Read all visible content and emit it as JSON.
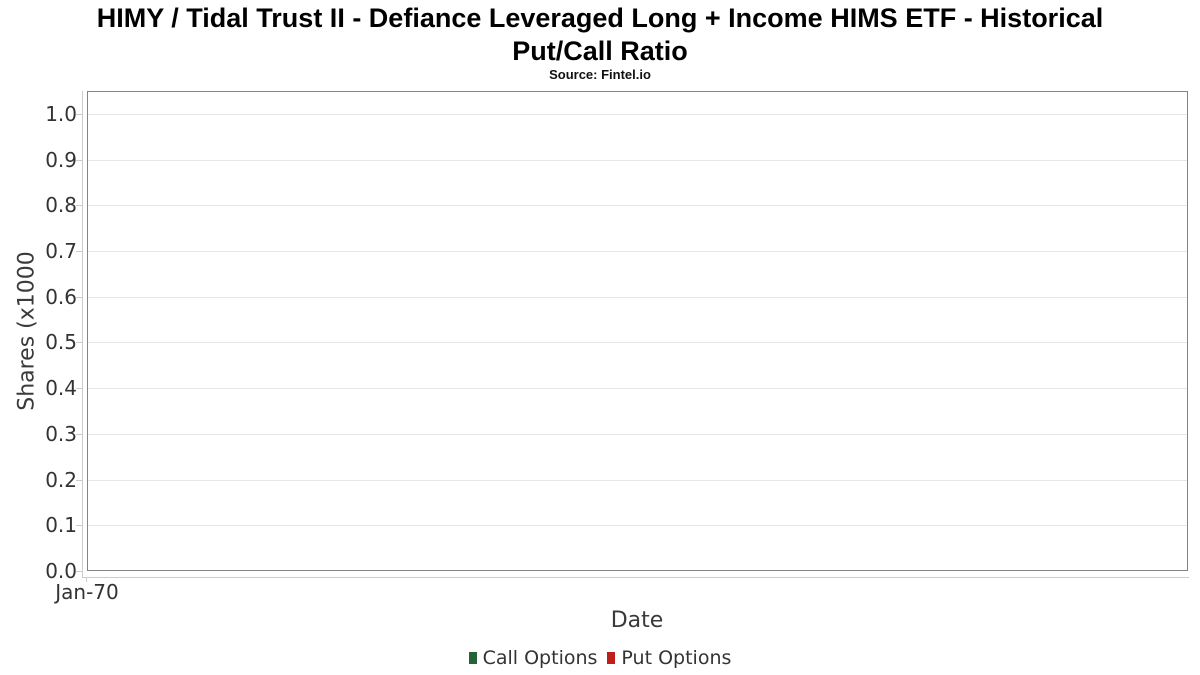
{
  "header": {
    "title_line1": "HIMY / Tidal Trust II - Defiance Leveraged Long + Income HIMS ETF - Historical",
    "title_line2": "Put/Call Ratio",
    "subtitle": "Source: Fintel.io"
  },
  "chart_data": {
    "type": "line",
    "title": "HIMY / Tidal Trust II - Defiance Leveraged Long + Income HIMS ETF - Historical Put/Call Ratio",
    "subtitle": "Source: Fintel.io",
    "xlabel": "Date",
    "ylabel": "Shares (x1000",
    "x_tick_labels": [
      "Jan-70"
    ],
    "y_tick_labels": [
      "0.0",
      "0.1",
      "0.2",
      "0.3",
      "0.4",
      "0.5",
      "0.6",
      "0.7",
      "0.8",
      "0.9",
      "1.0"
    ],
    "ylim": [
      0,
      1.05
    ],
    "grid": true,
    "legend_position": "bottom",
    "series": [
      {
        "name": "Call Options",
        "color": "#266437",
        "values": []
      },
      {
        "name": "Put Options",
        "color": "#bd201a",
        "values": []
      }
    ]
  }
}
